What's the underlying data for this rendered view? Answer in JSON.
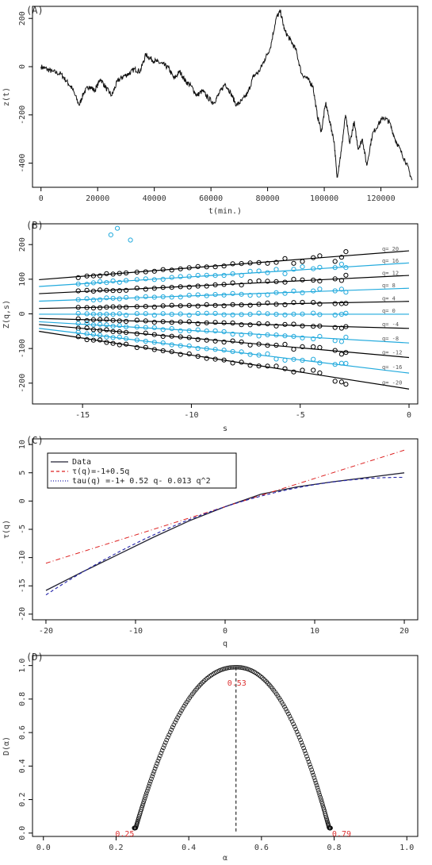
{
  "chart_data": [
    {
      "type": "line",
      "panel_label": "(A)",
      "xlabel": "t(min.)",
      "ylabel": "z(t)",
      "xlim": [
        -3000,
        133000
      ],
      "ylim": [
        -500,
        250
      ],
      "xticks": [
        "0",
        "20000",
        "40000",
        "60000",
        "80000",
        "100000",
        "120000"
      ],
      "xtick_values": [
        0,
        20000,
        40000,
        60000,
        80000,
        100000,
        120000
      ],
      "yticks": [
        "-400",
        "-200",
        "0",
        "200"
      ],
      "ytick_values": [
        -400,
        -200,
        0,
        200
      ],
      "x": [
        0,
        2000,
        4000,
        7000,
        9000,
        11000,
        13500,
        15000,
        17000,
        19000,
        21000,
        23000,
        25000,
        27000,
        29000,
        31000,
        33000,
        35000,
        37000,
        39000,
        41000,
        43000,
        45000,
        47000,
        49000,
        51000,
        53000,
        55000,
        57000,
        59000,
        61000,
        63000,
        65000,
        67000,
        69000,
        71000,
        73000,
        75000,
        77000,
        79000,
        81000,
        83000,
        84500,
        86000,
        88000,
        90000,
        92000,
        94000,
        96000,
        97500,
        99000,
        100500,
        102000,
        103500,
        104500,
        106000,
        107500,
        109000,
        110500,
        112000,
        113500,
        115000,
        117000,
        119000,
        121000,
        123000,
        125000,
        127000,
        129000,
        131000
      ],
      "y": [
        0,
        -10,
        -20,
        -30,
        -60,
        -90,
        -160,
        -110,
        -80,
        -100,
        -50,
        -90,
        -120,
        -60,
        -40,
        -30,
        -10,
        -20,
        50,
        30,
        20,
        10,
        -5,
        -50,
        -20,
        -60,
        -80,
        -120,
        -100,
        -130,
        -150,
        -110,
        -70,
        -110,
        -160,
        -140,
        -110,
        -40,
        -20,
        30,
        80,
        200,
        230,
        150,
        110,
        70,
        -30,
        -50,
        -80,
        -200,
        -270,
        -150,
        -230,
        -310,
        -460,
        -350,
        -200,
        -320,
        -230,
        -340,
        -300,
        -410,
        -280,
        -240,
        -210,
        -230,
        -300,
        -350,
        -400,
        -470
      ]
    },
    {
      "type": "scatter",
      "panel_label": "(B)",
      "xlabel": "s",
      "ylabel": "Z(q,s)",
      "xlim": [
        -17.3,
        0.4
      ],
      "ylim": [
        -260,
        260
      ],
      "xticks": [
        "-15",
        "-10",
        "-5",
        "0"
      ],
      "xtick_values": [
        -15,
        -10,
        -5,
        0
      ],
      "yticks": [
        "-200",
        "-100",
        "0",
        "100",
        "200"
      ],
      "ytick_values": [
        -200,
        -100,
        0,
        100,
        200
      ],
      "s_points": [
        -15.2,
        -14.8,
        -14.5,
        -14.2,
        -13.9,
        -13.6,
        -13.3,
        -13,
        -12.5,
        -12.1,
        -11.7,
        -11.3,
        -10.9,
        -10.5,
        -10.1,
        -9.7,
        -9.3,
        -8.9,
        -8.5,
        -8.1,
        -7.7,
        -7.3,
        -6.9,
        -6.5,
        -6.1,
        -5.7,
        -5.3,
        -4.9,
        -4.4,
        -4.1,
        -3.4,
        -3.1,
        -2.9
      ],
      "series": [
        {
          "name": "q= 20",
          "q": 20,
          "color": "#000000",
          "intercept": 182,
          "slope": 4.9
        },
        {
          "name": "q= 16",
          "q": 16,
          "color": "#22aadd",
          "intercept": 147,
          "slope": 4.0
        },
        {
          "name": "q= 12",
          "q": 12,
          "color": "#000000",
          "intercept": 111,
          "slope": 3.1
        },
        {
          "name": "q= 8",
          "q": 8,
          "color": "#22aadd",
          "intercept": 74,
          "slope": 2.2
        },
        {
          "name": "q= 4",
          "q": 4,
          "color": "#000000",
          "intercept": 36,
          "slope": 1.2
        },
        {
          "name": "q= 0",
          "q": 0,
          "color": "#22aadd",
          "intercept": -1,
          "slope": 0
        },
        {
          "name": "q= -4",
          "q": -4,
          "color": "#000000",
          "intercept": -42,
          "slope": -1.7
        },
        {
          "name": "q= -8",
          "q": -8,
          "color": "#22aadd",
          "intercept": -84,
          "slope": -3.6
        },
        {
          "name": "q= -12",
          "q": -12,
          "color": "#000000",
          "intercept": -126,
          "slope": -5.6
        },
        {
          "name": "q= -16",
          "q": -16,
          "color": "#22aadd",
          "intercept": -171,
          "slope": -7.6
        },
        {
          "name": "q= -20",
          "q": -20,
          "color": "#000000",
          "intercept": -217,
          "slope": -9.8
        }
      ],
      "outlier_points": [
        {
          "x": -13.4,
          "y": 247
        },
        {
          "x": -13.7,
          "y": 228
        },
        {
          "x": -12.8,
          "y": 213
        }
      ]
    },
    {
      "type": "line",
      "panel_label": "(C)",
      "xlabel": "q",
      "ylabel": "τ(q)",
      "xlim": [
        -21.5,
        21.5
      ],
      "ylim": [
        -21,
        11
      ],
      "xticks": [
        "-20",
        "-10",
        "0",
        "10",
        "20"
      ],
      "xtick_values": [
        -20,
        -10,
        0,
        10,
        20
      ],
      "yticks": [
        "-20",
        "-15",
        "-10",
        "-5",
        "0",
        "5",
        "10"
      ],
      "ytick_values": [
        -20,
        -15,
        -10,
        -5,
        0,
        5,
        10
      ],
      "legend": [
        "Data",
        "τ(q)=-1+0.5q",
        "tau(q) =-1+ 0.52 q- 0.013 q^2"
      ],
      "series": [
        {
          "name": "Data",
          "color": "#222233",
          "dash": "solid",
          "x": [
            -20,
            -16,
            -12,
            -8,
            -4,
            0,
            4,
            8,
            12,
            16,
            20
          ],
          "y": [
            -15.8,
            -12.6,
            -9.5,
            -6.4,
            -3.5,
            -1.0,
            1.2,
            2.5,
            3.4,
            4.2,
            5.0
          ]
        },
        {
          "name": "τ(q)=-1+0.5q",
          "color": "#dd2222",
          "dash": "dashdot",
          "intercept": -1,
          "slope": 0.5
        },
        {
          "name": "tau(q) =-1+ 0.52 q- 0.013 q^2",
          "color": "#2222aa",
          "dash": "dashed",
          "a": -1,
          "b": 0.52,
          "c": -0.013
        }
      ]
    },
    {
      "type": "scatter",
      "panel_label": "(D)",
      "xlabel": "α",
      "ylabel": "D(α)",
      "xlim": [
        -0.03,
        1.03
      ],
      "ylim": [
        -0.02,
        1.06
      ],
      "xticks": [
        "0.0",
        "0.2",
        "0.4",
        "0.6",
        "0.8",
        "1.0"
      ],
      "xtick_values": [
        0,
        0.2,
        0.4,
        0.6,
        0.8,
        1.0
      ],
      "yticks": [
        "0.0",
        "0.2",
        "0.4",
        "0.6",
        "0.8",
        "1.0"
      ],
      "ytick_values": [
        0,
        0.2,
        0.4,
        0.6,
        0.8,
        1.0
      ],
      "alpha_min": 0.25,
      "alpha_peak": 0.53,
      "alpha_max": 0.79,
      "D_peak": 0.99,
      "annotations": [
        "0.25",
        "0.53",
        "0.79"
      ],
      "annotation_color": "#dd3333",
      "points_count": 200
    }
  ]
}
